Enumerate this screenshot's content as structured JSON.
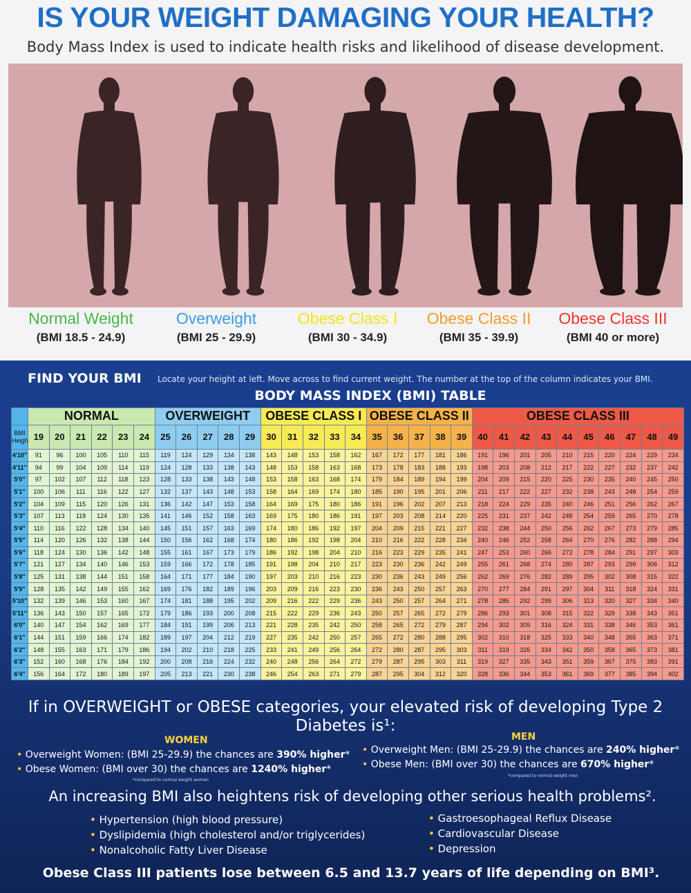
{
  "header": {
    "title": "IS YOUR WEIGHT DAMAGING YOUR HEALTH?",
    "subtitle": "Body Mass Index is used to indicate health risks and likelihood of disease development."
  },
  "colors": {
    "title_blue": "#1f6fc6",
    "figure_bg": "#d4a7ab",
    "figure_fill": "#2a1a1b",
    "normal": "#48b548",
    "overweight": "#3a9be3",
    "obese1": "#f2e31c",
    "obese2": "#f59a2a",
    "obese3": "#e7352b",
    "accent_yellow": "#ffd23a",
    "panel_blue": "#1a3f8f"
  },
  "categories": [
    {
      "name": "Normal Weight",
      "range": "(BMI 18.5 - 24.9)",
      "color": "#48b548"
    },
    {
      "name": "Overweight",
      "range": "(BMI 25 - 29.9)",
      "color": "#3a9be3"
    },
    {
      "name": "Obese Class I",
      "range": "(BMI 30 - 34.9)",
      "color": "#f2e31c"
    },
    {
      "name": "Obese Class II",
      "range": "(BMI 35 - 39.9)",
      "color": "#f59a2a"
    },
    {
      "name": "Obese Class III",
      "range": "(BMI 40 or more)",
      "color": "#e7352b"
    }
  ],
  "find_bmi": {
    "title": "FIND YOUR BMI",
    "instructions": "Locate your height at left. Move across to find current weight. The number at the top of the column indicates your BMI.",
    "table_title": "BODY MASS INDEX (BMI) TABLE"
  },
  "bmi_table": {
    "bands": [
      {
        "label": "NORMAL",
        "span": 6,
        "color": "#c9e9b0"
      },
      {
        "label": "OVERWEIGHT",
        "span": 5,
        "color": "#8fcdf0"
      },
      {
        "label": "OBESE CLASS I",
        "span": 5,
        "color": "#f7ea55"
      },
      {
        "label": "OBESE CLASS II",
        "span": 5,
        "color": "#f6b24a"
      },
      {
        "label": "OBESE CLASS III",
        "span": 10,
        "color": "#ee5a47"
      }
    ],
    "bmi_label": "BMI",
    "height_label": "Height",
    "bmi_values": [
      19,
      20,
      21,
      22,
      23,
      24,
      25,
      26,
      27,
      28,
      29,
      30,
      31,
      32,
      33,
      34,
      35,
      36,
      37,
      38,
      39,
      40,
      41,
      42,
      43,
      44,
      45,
      46,
      47,
      48,
      49
    ],
    "rows": [
      {
        "height": "4'10\"",
        "weights": [
          91,
          96,
          100,
          105,
          110,
          115,
          119,
          124,
          129,
          134,
          138,
          143,
          148,
          153,
          158,
          162,
          167,
          172,
          177,
          181,
          186,
          191,
          196,
          201,
          205,
          210,
          215,
          220,
          224,
          229,
          234
        ]
      },
      {
        "height": "4'11\"",
        "weights": [
          94,
          99,
          104,
          109,
          114,
          119,
          124,
          128,
          133,
          138,
          143,
          148,
          153,
          158,
          163,
          168,
          173,
          178,
          183,
          188,
          193,
          198,
          203,
          208,
          212,
          217,
          222,
          227,
          232,
          237,
          242
        ]
      },
      {
        "height": "5'0\"",
        "weights": [
          97,
          102,
          107,
          112,
          118,
          123,
          128,
          133,
          138,
          143,
          148,
          153,
          158,
          163,
          168,
          174,
          179,
          184,
          189,
          194,
          199,
          204,
          209,
          215,
          220,
          225,
          230,
          235,
          240,
          245,
          250
        ]
      },
      {
        "height": "5'1\"",
        "weights": [
          100,
          106,
          111,
          116,
          122,
          127,
          132,
          137,
          143,
          148,
          153,
          158,
          164,
          169,
          174,
          180,
          185,
          190,
          195,
          201,
          206,
          211,
          217,
          222,
          227,
          232,
          238,
          243,
          248,
          254,
          259
        ]
      },
      {
        "height": "5'2\"",
        "weights": [
          104,
          109,
          115,
          120,
          126,
          131,
          136,
          142,
          147,
          153,
          158,
          164,
          169,
          175,
          180,
          186,
          191,
          196,
          202,
          207,
          213,
          218,
          224,
          229,
          235,
          240,
          246,
          251,
          256,
          262,
          267
        ]
      },
      {
        "height": "5'3\"",
        "weights": [
          107,
          113,
          118,
          124,
          130,
          135,
          141,
          146,
          152,
          158,
          163,
          169,
          175,
          180,
          186,
          191,
          197,
          203,
          208,
          214,
          220,
          225,
          231,
          237,
          242,
          248,
          254,
          259,
          265,
          270,
          278
        ]
      },
      {
        "height": "5'4\"",
        "weights": [
          110,
          116,
          122,
          128,
          134,
          140,
          145,
          151,
          157,
          163,
          169,
          174,
          180,
          186,
          192,
          197,
          204,
          209,
          215,
          221,
          227,
          232,
          238,
          244,
          250,
          256,
          262,
          267,
          273,
          279,
          285
        ]
      },
      {
        "height": "5'5\"",
        "weights": [
          114,
          120,
          126,
          132,
          138,
          144,
          150,
          156,
          162,
          168,
          174,
          180,
          186,
          192,
          198,
          204,
          210,
          216,
          222,
          228,
          234,
          240,
          246,
          252,
          258,
          264,
          270,
          276,
          282,
          288,
          294
        ]
      },
      {
        "height": "5'6\"",
        "weights": [
          118,
          124,
          130,
          136,
          142,
          148,
          155,
          161,
          167,
          173,
          179,
          186,
          192,
          198,
          204,
          210,
          216,
          223,
          229,
          235,
          241,
          247,
          253,
          260,
          266,
          272,
          278,
          284,
          291,
          297,
          303
        ]
      },
      {
        "height": "5'7\"",
        "weights": [
          121,
          127,
          134,
          140,
          146,
          153,
          159,
          166,
          172,
          178,
          185,
          191,
          198,
          204,
          210,
          217,
          223,
          230,
          236,
          242,
          249,
          255,
          261,
          268,
          274,
          280,
          287,
          293,
          299,
          306,
          312
        ]
      },
      {
        "height": "5'8\"",
        "weights": [
          125,
          131,
          138,
          144,
          151,
          158,
          164,
          171,
          177,
          184,
          190,
          197,
          203,
          210,
          216,
          223,
          230,
          236,
          243,
          249,
          256,
          262,
          269,
          276,
          282,
          289,
          295,
          302,
          308,
          315,
          322
        ]
      },
      {
        "height": "5'9\"",
        "weights": [
          128,
          135,
          142,
          149,
          155,
          162,
          169,
          176,
          182,
          189,
          196,
          203,
          209,
          216,
          223,
          230,
          236,
          243,
          250,
          257,
          263,
          270,
          277,
          284,
          291,
          297,
          304,
          311,
          318,
          324,
          331
        ]
      },
      {
        "height": "5'10\"",
        "weights": [
          132,
          139,
          146,
          153,
          160,
          167,
          174,
          181,
          188,
          195,
          202,
          209,
          216,
          222,
          229,
          236,
          243,
          250,
          257,
          264,
          271,
          278,
          285,
          292,
          299,
          306,
          313,
          320,
          327,
          334,
          340
        ]
      },
      {
        "height": "5'11\"",
        "weights": [
          136,
          143,
          150,
          157,
          165,
          172,
          179,
          186,
          193,
          200,
          208,
          215,
          222,
          229,
          236,
          243,
          250,
          257,
          265,
          272,
          279,
          286,
          293,
          301,
          308,
          315,
          322,
          329,
          338,
          343,
          351
        ]
      },
      {
        "height": "6'0\"",
        "weights": [
          140,
          147,
          154,
          162,
          169,
          177,
          184,
          191,
          199,
          206,
          213,
          221,
          228,
          235,
          242,
          250,
          258,
          265,
          272,
          279,
          287,
          294,
          302,
          309,
          316,
          324,
          331,
          338,
          346,
          353,
          361
        ]
      },
      {
        "height": "6'1\"",
        "weights": [
          144,
          151,
          159,
          166,
          174,
          182,
          189,
          197,
          204,
          212,
          219,
          227,
          235,
          242,
          250,
          257,
          265,
          272,
          280,
          288,
          295,
          302,
          310,
          318,
          325,
          333,
          340,
          348,
          355,
          363,
          371
        ]
      },
      {
        "height": "6'2\"",
        "weights": [
          148,
          155,
          163,
          171,
          179,
          186,
          194,
          202,
          210,
          218,
          225,
          233,
          241,
          249,
          256,
          264,
          272,
          280,
          287,
          295,
          303,
          311,
          319,
          326,
          334,
          342,
          350,
          358,
          365,
          373,
          381
        ]
      },
      {
        "height": "6'3\"",
        "weights": [
          152,
          160,
          168,
          176,
          184,
          192,
          200,
          208,
          216,
          224,
          232,
          240,
          248,
          256,
          264,
          272,
          279,
          287,
          295,
          303,
          311,
          319,
          327,
          335,
          343,
          351,
          359,
          367,
          375,
          383,
          391
        ]
      },
      {
        "height": "6'4\"",
        "weights": [
          156,
          164,
          172,
          180,
          189,
          197,
          205,
          213,
          221,
          230,
          238,
          246,
          254,
          263,
          271,
          279,
          287,
          295,
          304,
          312,
          320,
          328,
          336,
          344,
          353,
          361,
          369,
          377,
          385,
          394,
          402
        ]
      }
    ]
  },
  "diabetes": {
    "intro": "If in OVERWEIGHT or OBESE categories, your elevated risk of developing Type 2 Diabetes is¹:",
    "women_heading": "WOMEN",
    "men_heading": "MEN",
    "women_items": [
      {
        "text": "Overweight Women: (BMI 25-29.9) the chances are ",
        "highlight": "390% higher",
        "suffix": "*"
      },
      {
        "text": "Obese Women: (BMI over 30) the chances are ",
        "highlight": "1240% higher",
        "suffix": "*"
      }
    ],
    "men_items": [
      {
        "text": "Overweight Men: (BMI 25-29.9) the chances are ",
        "highlight": "240% higher",
        "suffix": "*"
      },
      {
        "text": "Obese Men: (BMI over 30) the chances are ",
        "highlight": "670% higher",
        "suffix": "*"
      }
    ],
    "women_footnote": "*compared to normal weight women",
    "men_footnote": "*compared to normal weight men"
  },
  "other_problems": {
    "intro": "An increasing BMI also heightens risk of developing other serious health problems².",
    "left": [
      "Hypertension (high blood pressure)",
      "Dyslipidemia (high cholesterol and/or triglycerides)",
      "Nonalcoholic Fatty Liver Disease"
    ],
    "right": [
      "Gastroesophageal Reflux Disease",
      "Cardiovascular Disease",
      "Depression"
    ]
  },
  "closing": "Obese Class III patients lose between 6.5 and 13.7 years of life depending on BMI³."
}
